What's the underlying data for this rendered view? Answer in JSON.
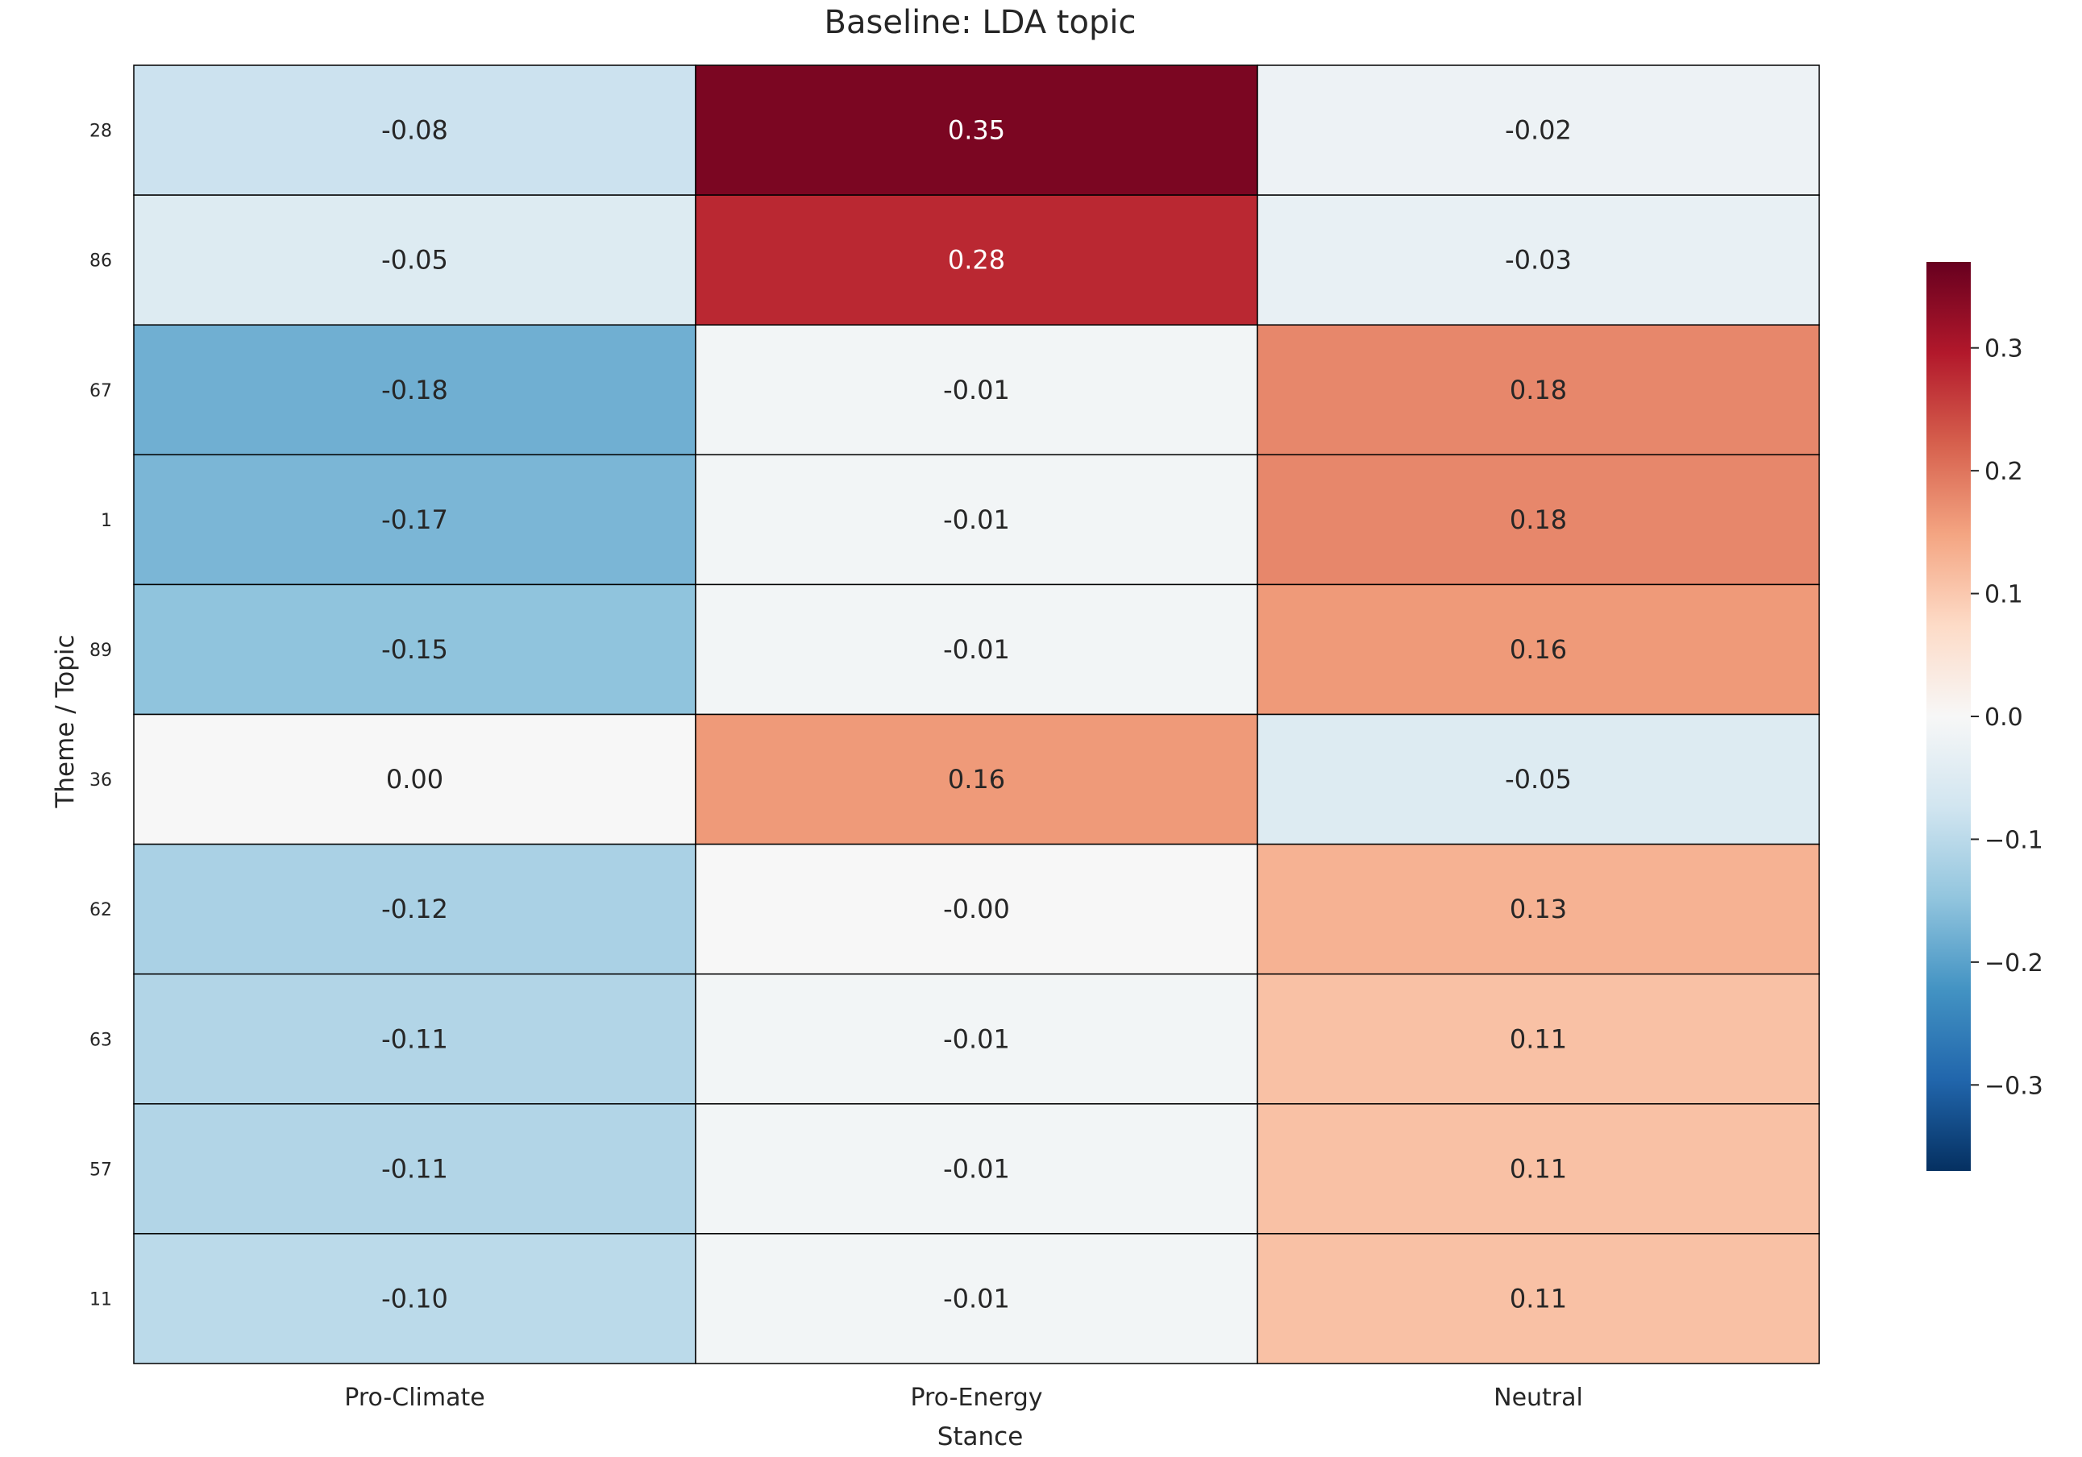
{
  "chart_data": {
    "type": "heatmap",
    "title": "Baseline: LDA topic",
    "xlabel": "Stance",
    "ylabel": "Theme / Topic",
    "columns": [
      "Pro-Climate",
      "Pro-Energy",
      "Neutral"
    ],
    "rows": [
      "28",
      "86",
      "67",
      "1",
      "89",
      "36",
      "62",
      "63",
      "57",
      "11"
    ],
    "values": [
      [
        -0.08,
        0.35,
        -0.02
      ],
      [
        -0.05,
        0.28,
        -0.03
      ],
      [
        -0.18,
        -0.01,
        0.18
      ],
      [
        -0.17,
        -0.01,
        0.18
      ],
      [
        -0.15,
        -0.01,
        0.16
      ],
      [
        0.0,
        0.16,
        -0.05
      ],
      [
        -0.12,
        -0.0,
        0.13
      ],
      [
        -0.11,
        -0.01,
        0.11
      ],
      [
        -0.11,
        -0.01,
        0.11
      ],
      [
        -0.1,
        -0.01,
        0.11
      ]
    ],
    "cell_labels": [
      [
        "-0.08",
        "0.35",
        "-0.02"
      ],
      [
        "-0.05",
        "0.28",
        "-0.03"
      ],
      [
        "-0.18",
        "-0.01",
        "0.18"
      ],
      [
        "-0.17",
        "-0.01",
        "0.18"
      ],
      [
        "-0.15",
        "-0.01",
        "0.16"
      ],
      [
        "0.00",
        "0.16",
        "-0.05"
      ],
      [
        "-0.12",
        "-0.00",
        "0.13"
      ],
      [
        "-0.11",
        "-0.01",
        "0.11"
      ],
      [
        "-0.11",
        "-0.01",
        "0.11"
      ],
      [
        "-0.10",
        "-0.01",
        "0.11"
      ]
    ],
    "colormap": "RdBu_r",
    "color_range": [
      -0.37,
      0.37
    ],
    "colorbar_ticks": [
      0.3,
      0.2,
      0.1,
      0.0,
      -0.1,
      -0.2,
      -0.3
    ],
    "colorbar_tick_labels": [
      "0.3",
      "0.2",
      "0.1",
      "0.0",
      "−0.1",
      "−0.2",
      "−0.3"
    ],
    "colorbar_colors": [
      "#053061",
      "#2166ac",
      "#4393c3",
      "#92c5de",
      "#d1e5f0",
      "#f7f7f7",
      "#fddbc7",
      "#f4a582",
      "#d6604d",
      "#b2182b",
      "#67001f"
    ]
  }
}
